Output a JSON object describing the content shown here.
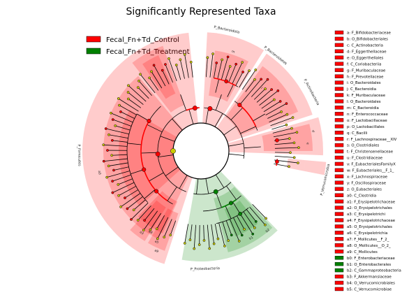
{
  "chart_data": {
    "type": "cladogram",
    "title": "Significantly Represented Taxa",
    "legend": {
      "placement": "top-left",
      "entries": [
        {
          "label": "Fecal_Fn+Td_Control",
          "color": "#ff0000"
        },
        {
          "label": "Fecal_Fn+Td_Treatment",
          "color": "#008000"
        }
      ]
    },
    "group_colors": {
      "Control": "#ff0000",
      "Treatment": "#008000"
    },
    "taxa": [
      {
        "key": "a",
        "name": "F_Bifidobacteriaceae",
        "group": "Control"
      },
      {
        "key": "b",
        "name": "O_Bifidobacteriales",
        "group": "Control"
      },
      {
        "key": "c",
        "name": "C_Actinobacteria",
        "group": "Control"
      },
      {
        "key": "d",
        "name": "F_Eggerthellaceae",
        "group": "Control"
      },
      {
        "key": "e",
        "name": "O_Eggerthellales",
        "group": "Control"
      },
      {
        "key": "f",
        "name": "C_Coriobacteriia",
        "group": "Control"
      },
      {
        "key": "g",
        "name": "F_Muribaculaceae",
        "group": "Control"
      },
      {
        "key": "h",
        "name": "F_Prevotellaceae",
        "group": "Control"
      },
      {
        "key": "i",
        "name": "O_Bacteroidales",
        "group": "Control"
      },
      {
        "key": "j",
        "name": "C_Bacteroidia",
        "group": "Control"
      },
      {
        "key": "k",
        "name": "F_Muribaculaceae",
        "group": "Control"
      },
      {
        "key": "l",
        "name": "O_Bacteroidales",
        "group": "Control"
      },
      {
        "key": "m",
        "name": "C_Bacteroidia",
        "group": "Control"
      },
      {
        "key": "n",
        "name": "F_Enterococcaceae",
        "group": "Control"
      },
      {
        "key": "o",
        "name": "F_Lactobacillaceae",
        "group": "Control"
      },
      {
        "key": "p",
        "name": "O_Lactobacillales",
        "group": "Control"
      },
      {
        "key": "q",
        "name": "C_Bacilli",
        "group": "Control"
      },
      {
        "key": "r",
        "name": "F_Lachnospiraceae__XIV",
        "group": "Control"
      },
      {
        "key": "s",
        "name": "O_Clostridiales",
        "group": "Control"
      },
      {
        "key": "t",
        "name": "F_Christensenellaceae",
        "group": "Control"
      },
      {
        "key": "u",
        "name": "F_Clostridiaceae",
        "group": "Control"
      },
      {
        "key": "v",
        "name": "F_EubacterialesFamilyX",
        "group": "Control"
      },
      {
        "key": "w",
        "name": "F_Eubacteriales__F_1_",
        "group": "Control"
      },
      {
        "key": "x",
        "name": "F_Lachnospiraceae",
        "group": "Control"
      },
      {
        "key": "y",
        "name": "F_Oscillospiraceae",
        "group": "Control"
      },
      {
        "key": "z",
        "name": "O_Eubacteriales",
        "group": "Control"
      },
      {
        "key": "a0",
        "name": "C_Clostridia",
        "group": "Control"
      },
      {
        "key": "a1",
        "name": "F_Erysipelotrichaceae",
        "group": "Control"
      },
      {
        "key": "a2",
        "name": "O_Erysipelotrichales",
        "group": "Control"
      },
      {
        "key": "a3",
        "name": "C_Erysipelotrichi",
        "group": "Control"
      },
      {
        "key": "a4",
        "name": "F_Erysipelotrichaceae",
        "group": "Control"
      },
      {
        "key": "a5",
        "name": "O_Erysipelotrichales",
        "group": "Control"
      },
      {
        "key": "a6",
        "name": "C_Erysipelotrichia",
        "group": "Control"
      },
      {
        "key": "a7",
        "name": "F_Mollicutes__F_2_",
        "group": "Control"
      },
      {
        "key": "a8",
        "name": "O_Mollicutes__O_2_",
        "group": "Control"
      },
      {
        "key": "a9",
        "name": "C_Mollicutes",
        "group": "Control"
      },
      {
        "key": "b0",
        "name": "F_Enterobacteriaceae",
        "group": "Treatment"
      },
      {
        "key": "b1",
        "name": "O_Enterobacterales",
        "group": "Treatment"
      },
      {
        "key": "b2",
        "name": "C_Gammaproteobacteria",
        "group": "Treatment"
      },
      {
        "key": "b3",
        "name": "F_Akkermansiaceae",
        "group": "Control"
      },
      {
        "key": "b4",
        "name": "O_Verrucomicrobiales",
        "group": "Control"
      },
      {
        "key": "b5",
        "name": "C_Verrucomicrobiae",
        "group": "Control"
      }
    ],
    "phyla": [
      {
        "name": "P_Bacteroidota",
        "group": "Control"
      },
      {
        "name": "P_Bacteroidetes",
        "group": "Control"
      },
      {
        "name": "P_Actinobacteria",
        "group": "Control"
      },
      {
        "name": "P_Verrucomicrobia",
        "group": "Control"
      },
      {
        "name": "P_Proteobacteria",
        "group": "Treatment"
      },
      {
        "name": "P_Firmicutes",
        "group": "Control"
      }
    ],
    "wedge_labels": [
      "a0",
      "a3",
      "a5",
      "a8",
      "a9",
      "b1",
      "b2",
      "m",
      "d",
      "i",
      "e"
    ]
  }
}
